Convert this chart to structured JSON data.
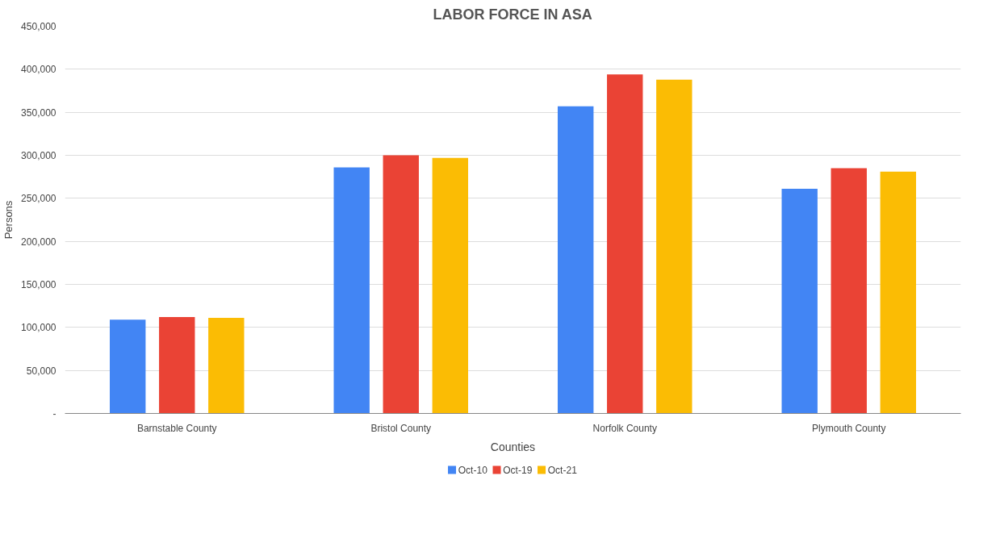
{
  "chart_data": {
    "type": "bar",
    "title": "LABOR FORCE IN ASA",
    "xlabel": "Counties",
    "ylabel": "Persons",
    "categories": [
      "Barnstable County",
      "Bristol County",
      "Norfolk County",
      "Plymouth County"
    ],
    "series": [
      {
        "name": "Oct-10",
        "color": "#4285f4",
        "values": [
          109000,
          286000,
          357000,
          261000
        ]
      },
      {
        "name": "Oct-19",
        "color": "#ea4335",
        "values": [
          112000,
          300000,
          394000,
          285000
        ]
      },
      {
        "name": "Oct-21",
        "color": "#fbbc04",
        "values": [
          111000,
          297000,
          388000,
          281000
        ]
      }
    ],
    "ylim": [
      0,
      450000
    ],
    "yticks": [
      {
        "value": 0,
        "label": "-"
      },
      {
        "value": 50000,
        "label": "50,000"
      },
      {
        "value": 100000,
        "label": "100,000"
      },
      {
        "value": 150000,
        "label": "150,000"
      },
      {
        "value": 200000,
        "label": "200,000"
      },
      {
        "value": 250000,
        "label": "250,000"
      },
      {
        "value": 300000,
        "label": "300,000"
      },
      {
        "value": 350000,
        "label": "350,000"
      },
      {
        "value": 400000,
        "label": "400,000"
      },
      {
        "value": 450000,
        "label": "450,000"
      }
    ],
    "grid": "y",
    "legend": "bottom"
  }
}
